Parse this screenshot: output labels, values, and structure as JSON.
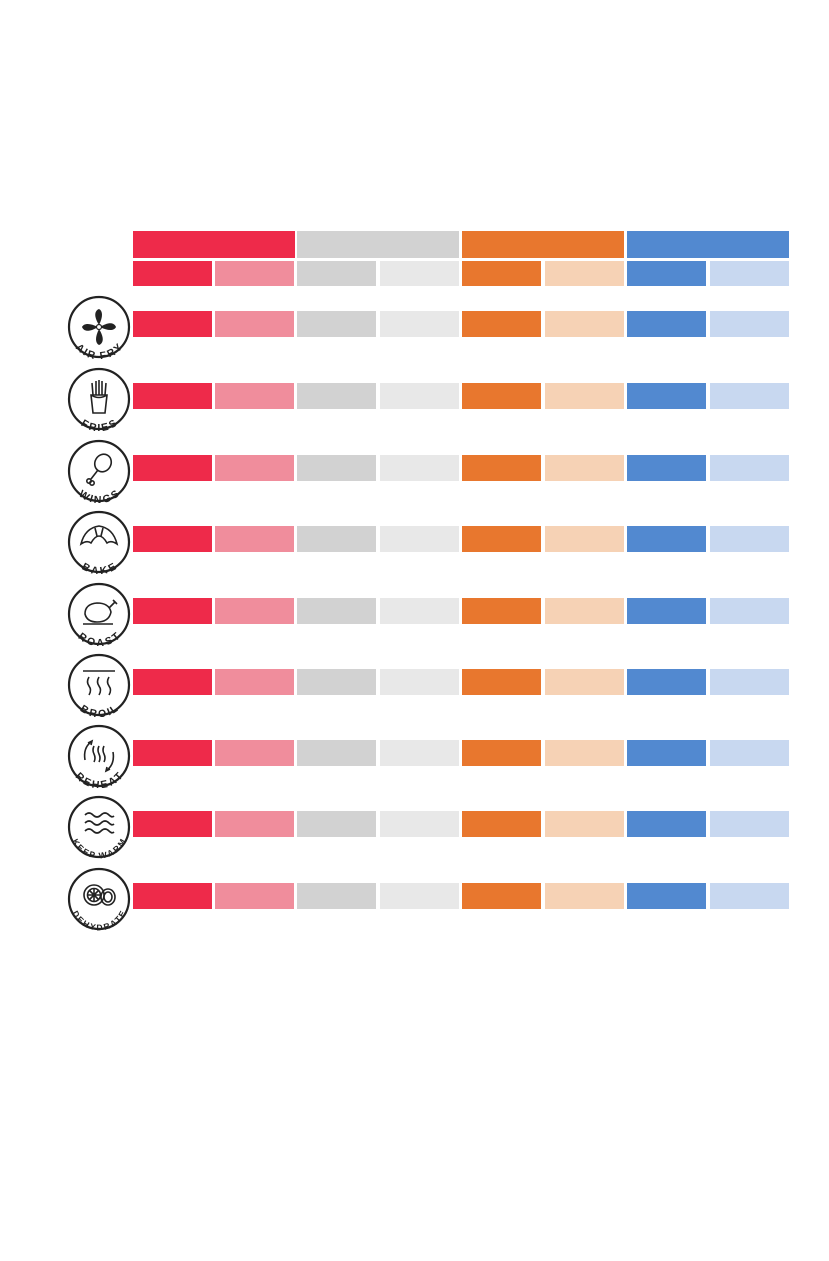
{
  "colors": {
    "red": "#ee2a4a",
    "red_light": "#f08d9c",
    "gray": "#d2d2d2",
    "gray_light": "#e8e8e8",
    "orange": "#e8772e",
    "orange_light": "#f6d2b5",
    "blue": "#5289d0",
    "blue_light": "#c8d8f0"
  },
  "groups": [
    {
      "color": "red"
    },
    {
      "color": "gray"
    },
    {
      "color": "orange"
    },
    {
      "color": "blue"
    }
  ],
  "rows": [
    {
      "label": "AIR FRY",
      "icon": "fan-icon"
    },
    {
      "label": "FRIES",
      "icon": "fries-icon"
    },
    {
      "label": "WINGS",
      "icon": "drumstick-icon"
    },
    {
      "label": "BAKE",
      "icon": "croissant-icon"
    },
    {
      "label": "ROAST",
      "icon": "roast-chicken-icon"
    },
    {
      "label": "BROIL",
      "icon": "heat-waves-icon"
    },
    {
      "label": "REHEAT",
      "icon": "reheat-icon"
    },
    {
      "label": "KEEP WARM",
      "icon": "warm-waves-icon"
    },
    {
      "label": "DEHYDRATE",
      "icon": "dried-fruit-icon"
    }
  ]
}
